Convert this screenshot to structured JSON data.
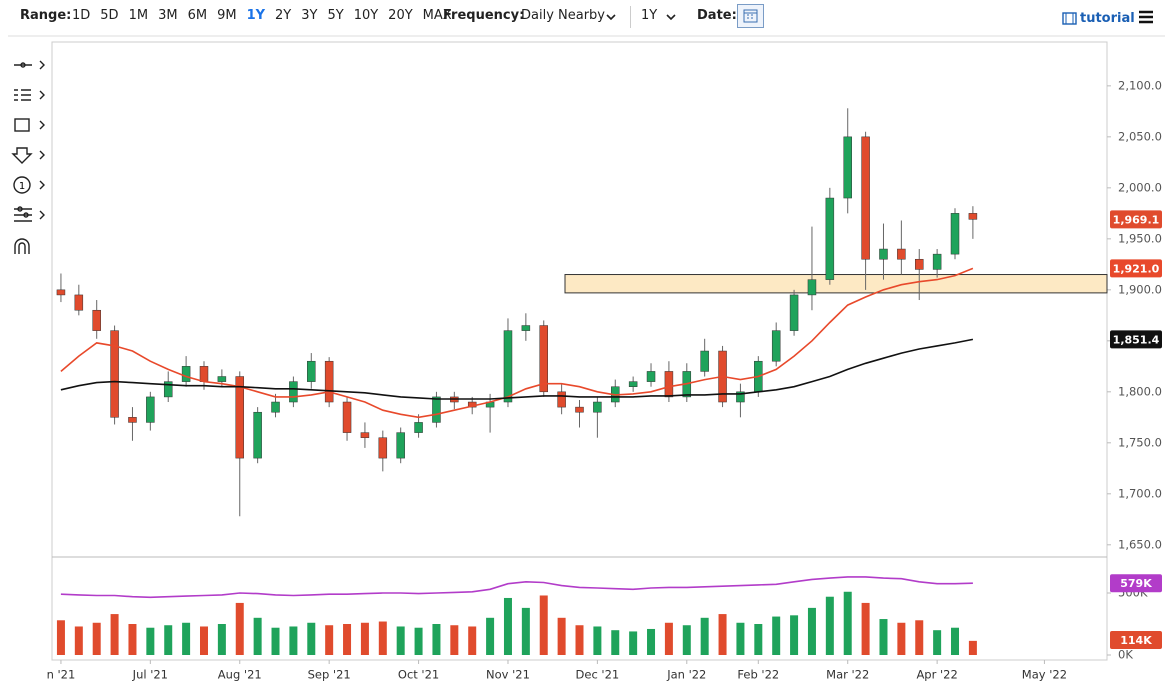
{
  "toolbar": {
    "range_label": "Range:",
    "ranges": [
      "1D",
      "5D",
      "1M",
      "3M",
      "6M",
      "9M",
      "1Y",
      "2Y",
      "3Y",
      "5Y",
      "10Y",
      "20Y",
      "MAX"
    ],
    "frequency_label": "Frequency:",
    "frequency": "Daily Nearby",
    "period": "1Y",
    "date_label": "Date:",
    "tutorial": "tutorial"
  },
  "chart_data": [
    {
      "type": "candlestick",
      "up_color": "#1fa35b",
      "down_color": "#e04b2d",
      "ylim": [
        1640,
        2143
      ],
      "yticks": [
        {
          "value": 1650,
          "label": "1,650.0"
        },
        {
          "value": 1700,
          "label": "1,700.0"
        },
        {
          "value": 1750,
          "label": "1,750.0"
        },
        {
          "value": 1800,
          "label": "1,800.0"
        },
        {
          "value": 1850,
          "label": "1,850.0"
        },
        {
          "value": 1900,
          "label": "1,900.0"
        },
        {
          "value": 1950,
          "label": "1,950.0"
        },
        {
          "value": 2000,
          "label": "2,000.0"
        },
        {
          "value": 2050,
          "label": "2,050.0"
        },
        {
          "value": 2100,
          "label": "2,100.0"
        }
      ],
      "grid": false,
      "zone": [
        1897,
        1915
      ],
      "zone_color": "#fde9c4",
      "open": [
        1900,
        1895,
        1880,
        1860,
        1775,
        1770,
        1795,
        1810,
        1825,
        1810,
        1815,
        1735,
        1780,
        1790,
        1810,
        1830,
        1790,
        1760,
        1755,
        1735,
        1760,
        1770,
        1795,
        1790,
        1785,
        1790,
        1860,
        1865,
        1800,
        1785,
        1780,
        1790,
        1805,
        1810,
        1820,
        1795,
        1820,
        1840,
        1790,
        1800,
        1830,
        1860,
        1895,
        1910,
        1990,
        2050,
        1930,
        1940,
        1930,
        1920,
        1935,
        1975,
        null,
        null,
        null,
        null,
        null,
        null,
        null
      ],
      "high": [
        1916,
        1905,
        1890,
        1865,
        1785,
        1800,
        1820,
        1835,
        1830,
        1822,
        1820,
        1785,
        1798,
        1815,
        1838,
        1834,
        1795,
        1770,
        1762,
        1765,
        1778,
        1800,
        1800,
        1795,
        1798,
        1872,
        1877,
        1870,
        1808,
        1792,
        1795,
        1812,
        1815,
        1828,
        1830,
        1828,
        1852,
        1845,
        1808,
        1835,
        1868,
        1900,
        1962,
        2000,
        2078,
        2055,
        1965,
        1968,
        1940,
        1940,
        1980,
        1982,
        null,
        null,
        null,
        null,
        null,
        null,
        null
      ],
      "low": [
        1888,
        1875,
        1852,
        1768,
        1752,
        1762,
        1790,
        1805,
        1802,
        1805,
        1678,
        1730,
        1775,
        1785,
        1803,
        1785,
        1752,
        1745,
        1722,
        1730,
        1755,
        1765,
        1783,
        1778,
        1760,
        1785,
        1850,
        1795,
        1778,
        1765,
        1755,
        1785,
        1800,
        1805,
        1790,
        1790,
        1815,
        1785,
        1775,
        1795,
        1825,
        1855,
        1880,
        1905,
        1975,
        1900,
        1910,
        1915,
        1890,
        1912,
        1930,
        1950,
        null,
        null,
        null,
        null,
        null,
        null,
        null
      ],
      "close": [
        1895,
        1880,
        1860,
        1775,
        1770,
        1795,
        1810,
        1825,
        1810,
        1815,
        1735,
        1780,
        1790,
        1810,
        1830,
        1790,
        1760,
        1755,
        1735,
        1760,
        1770,
        1795,
        1790,
        1785,
        1790,
        1860,
        1865,
        1800,
        1785,
        1780,
        1790,
        1805,
        1810,
        1820,
        1795,
        1820,
        1840,
        1790,
        1800,
        1830,
        1860,
        1895,
        1910,
        1990,
        2050,
        1930,
        1940,
        1930,
        1920,
        1935,
        1975,
        1969.1,
        null,
        null,
        null,
        null,
        null,
        null,
        null
      ],
      "close_labels": [
        null,
        null,
        null,
        null,
        null,
        null,
        null,
        null,
        null,
        null,
        null,
        null,
        null,
        null,
        null,
        null,
        null,
        null,
        null,
        null,
        null,
        null,
        null,
        null,
        null,
        null,
        null,
        null,
        null,
        null,
        null,
        null,
        null,
        null,
        null,
        null,
        null,
        null,
        null,
        null,
        null,
        null,
        null,
        null,
        null,
        null,
        null,
        null,
        null,
        null,
        null,
        "1,969.1",
        null,
        null,
        null,
        null,
        null,
        null,
        null
      ],
      "series": [
        {
          "color": "#e8492b",
          "values": [
            1820,
            1835,
            1848,
            1845,
            1840,
            1830,
            1822,
            1815,
            1810,
            1808,
            1805,
            1800,
            1795,
            1795,
            1797,
            1800,
            1795,
            1790,
            1782,
            1778,
            1775,
            1778,
            1782,
            1786,
            1790,
            1795,
            1803,
            1808,
            1808,
            1805,
            1800,
            1797,
            1798,
            1800,
            1805,
            1808,
            1812,
            1815,
            1812,
            1815,
            1822,
            1835,
            1850,
            1868,
            1885,
            1893,
            1900,
            1905,
            1908,
            1910,
            1914,
            1921,
            null,
            null,
            null,
            null,
            null,
            null,
            null
          ],
          "value_labels": [
            null,
            null,
            null,
            null,
            null,
            null,
            null,
            null,
            null,
            null,
            null,
            null,
            null,
            null,
            null,
            null,
            null,
            null,
            null,
            null,
            null,
            null,
            null,
            null,
            null,
            null,
            null,
            null,
            null,
            null,
            null,
            null,
            null,
            null,
            null,
            null,
            null,
            null,
            null,
            null,
            null,
            null,
            null,
            null,
            null,
            null,
            null,
            null,
            null,
            null,
            null,
            "1,921.0",
            null,
            null,
            null,
            null,
            null,
            null,
            null
          ]
        },
        {
          "color": "#111111",
          "values": [
            1802,
            1806,
            1809,
            1810,
            1809,
            1808,
            1807,
            1806,
            1806,
            1805,
            1805,
            1804,
            1803,
            1803,
            1802,
            1801,
            1800,
            1799,
            1797,
            1795,
            1794,
            1793,
            1793,
            1793,
            1793,
            1794,
            1795,
            1796,
            1796,
            1795,
            1795,
            1795,
            1795,
            1796,
            1796,
            1797,
            1797,
            1798,
            1798,
            1800,
            1802,
            1805,
            1810,
            1815,
            1822,
            1828,
            1833,
            1838,
            1842,
            1845,
            1848,
            1851.4,
            null,
            null,
            null,
            null,
            null,
            null,
            null
          ],
          "value_labels": [
            null,
            null,
            null,
            null,
            null,
            null,
            null,
            null,
            null,
            null,
            null,
            null,
            null,
            null,
            null,
            null,
            null,
            null,
            null,
            null,
            null,
            null,
            null,
            null,
            null,
            null,
            null,
            null,
            null,
            null,
            null,
            null,
            null,
            null,
            null,
            null,
            null,
            null,
            null,
            null,
            null,
            null,
            null,
            null,
            null,
            null,
            null,
            null,
            null,
            null,
            null,
            "1,851.4",
            null,
            null,
            null,
            null,
            null,
            null,
            null
          ]
        }
      ]
    },
    {
      "type": "bar",
      "ylim": [
        0,
        750000
      ],
      "yticks": [
        {
          "value": 0,
          "label": "0K"
        },
        {
          "value": 500000,
          "label": "500K"
        }
      ],
      "categories": [
        "n '21",
        null,
        null,
        null,
        null,
        "Jul '21",
        null,
        null,
        null,
        null,
        "Aug '21",
        null,
        null,
        null,
        null,
        "Sep '21",
        null,
        null,
        null,
        null,
        "Oct '21",
        null,
        null,
        null,
        null,
        "Nov '21",
        null,
        null,
        null,
        null,
        "Dec '21",
        null,
        null,
        null,
        null,
        "Jan '22",
        null,
        null,
        null,
        "Feb '22",
        null,
        null,
        null,
        null,
        "Mar '22",
        null,
        null,
        null,
        null,
        "Apr '22",
        null,
        null,
        null,
        null,
        null,
        "May '22",
        null,
        null,
        null
      ],
      "values": [
        280000,
        230000,
        260000,
        330000,
        250000,
        220000,
        240000,
        260000,
        230000,
        250000,
        420000,
        300000,
        220000,
        230000,
        260000,
        240000,
        250000,
        260000,
        270000,
        230000,
        220000,
        250000,
        240000,
        230000,
        300000,
        460000,
        380000,
        480000,
        300000,
        240000,
        230000,
        200000,
        190000,
        210000,
        260000,
        240000,
        300000,
        330000,
        260000,
        250000,
        310000,
        320000,
        380000,
        470000,
        510000,
        420000,
        290000,
        260000,
        280000,
        200000,
        220000,
        114000,
        null,
        null,
        null,
        null,
        null,
        null,
        null
      ],
      "value_labels": [
        null,
        null,
        null,
        null,
        null,
        null,
        null,
        null,
        null,
        null,
        null,
        null,
        null,
        null,
        null,
        null,
        null,
        null,
        null,
        null,
        null,
        null,
        null,
        null,
        null,
        null,
        null,
        null,
        null,
        null,
        null,
        null,
        null,
        null,
        null,
        null,
        null,
        null,
        null,
        null,
        null,
        null,
        null,
        null,
        null,
        null,
        null,
        null,
        null,
        null,
        null,
        "114K",
        null,
        null,
        null,
        null,
        null,
        null,
        null
      ],
      "series": [
        {
          "color": "#b23cc9",
          "values": [
            490000,
            485000,
            480000,
            480000,
            470000,
            465000,
            470000,
            475000,
            480000,
            485000,
            500000,
            495000,
            485000,
            480000,
            485000,
            490000,
            490000,
            495000,
            500000,
            500000,
            495000,
            500000,
            505000,
            510000,
            530000,
            575000,
            590000,
            585000,
            560000,
            545000,
            540000,
            535000,
            530000,
            540000,
            545000,
            545000,
            550000,
            555000,
            560000,
            565000,
            570000,
            590000,
            610000,
            620000,
            630000,
            630000,
            620000,
            615000,
            590000,
            575000,
            575000,
            579000,
            null,
            null,
            null,
            null,
            null,
            null,
            null
          ],
          "value_labels": [
            null,
            null,
            null,
            null,
            null,
            null,
            null,
            null,
            null,
            null,
            null,
            null,
            null,
            null,
            null,
            null,
            null,
            null,
            null,
            null,
            null,
            null,
            null,
            null,
            null,
            null,
            null,
            null,
            null,
            null,
            null,
            null,
            null,
            null,
            null,
            null,
            null,
            null,
            null,
            null,
            null,
            null,
            null,
            null,
            null,
            null,
            null,
            null,
            null,
            null,
            null,
            "579K",
            null,
            null,
            null,
            null,
            null,
            null,
            null
          ]
        }
      ]
    }
  ]
}
